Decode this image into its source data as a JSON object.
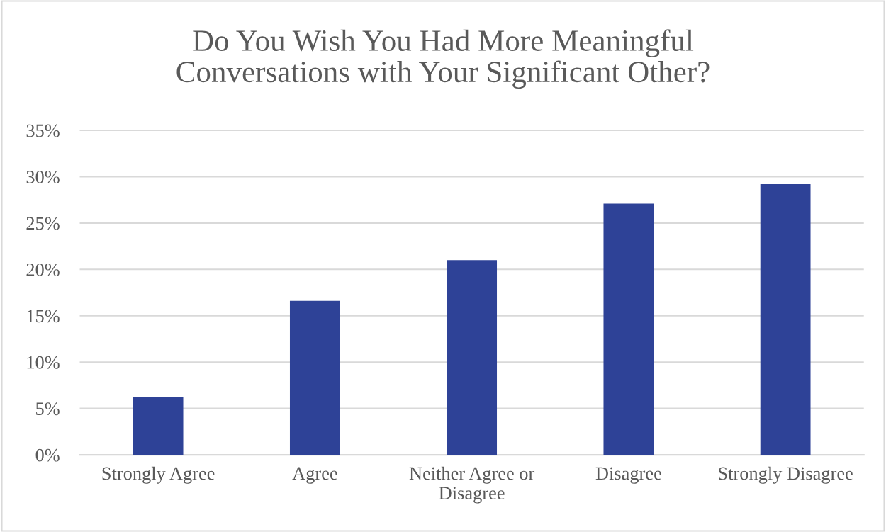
{
  "chart_data": {
    "type": "bar",
    "title": "Do You Wish You Had More Meaningful\nConversations with Your Significant Other?",
    "categories": [
      "Strongly Agree",
      "Agree",
      "Neither Agree or\nDisagree",
      "Disagree",
      "Strongly Disagree"
    ],
    "values": [
      6.2,
      16.6,
      21.0,
      27.1,
      29.2
    ],
    "color": "#2e4297",
    "ylim": [
      0,
      35
    ],
    "yticks": [
      {
        "value": 0,
        "label": "0%"
      },
      {
        "value": 5,
        "label": "5%"
      },
      {
        "value": 10,
        "label": "10%"
      },
      {
        "value": 15,
        "label": "15%"
      },
      {
        "value": 20,
        "label": "20%"
      },
      {
        "value": 25,
        "label": "25%"
      },
      {
        "value": 30,
        "label": "30%"
      },
      {
        "value": 35,
        "label": "35%"
      }
    ],
    "grid": "y",
    "legend": false
  }
}
